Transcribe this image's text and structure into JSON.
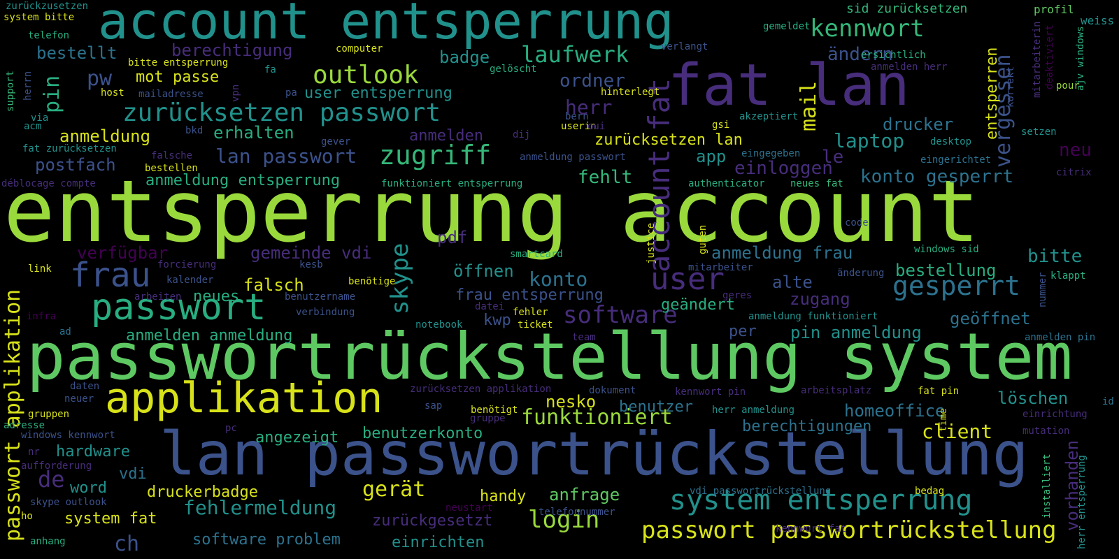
{
  "palette": {
    "lime": "#9ad93c",
    "green": "#5ec962",
    "teal": "#21918c",
    "seagreen": "#28ae80",
    "blue": "#3b528b",
    "indigo": "#472d7b",
    "purple": "#440154",
    "yellow": "#d8e219",
    "steel": "#2c728e",
    "mint": "#35b779"
  },
  "words": [
    "entsperrung account",
    "passwortrückstellung system",
    "lan passwortrückstellung",
    "account entsperrung",
    "fat lan",
    "applikation",
    "passwort",
    "zurücksetzen passwort",
    "outlook",
    "zugriff",
    "laufwerk",
    "kennwort",
    "frau",
    "user",
    "account fat",
    "system entsperrung",
    "passwort passwortrückstellung",
    "gesperrt",
    "software",
    "skype",
    "funktioniert",
    "login",
    "gerät",
    "fehlermeldung",
    "passwort applikation",
    "mail",
    "vergessen",
    "lan passwort",
    "postfach",
    "pin",
    "pw",
    "herr",
    "ordner",
    "ändern",
    "badge",
    "berechtigung",
    "bestellt",
    "mot passe",
    "user entsperrung",
    "anmeldung",
    "erhalten",
    "anmelden",
    "zurücksetzen lan",
    "laptop",
    "drucker",
    "einloggen",
    "konto gesperrt",
    "app",
    "le",
    "neu",
    "fehlt",
    "anmeldung entsperrung",
    "pdf",
    "verfügbar",
    "gemeinde vdi",
    "anmeldung frau",
    "bitte",
    "konto",
    "öffnen",
    "bestellung",
    "alte",
    "falsch",
    "neues",
    "frau entsperrung",
    "zugang",
    "geändert",
    "geöffnet",
    "kwp",
    "anmelden anmeldung",
    "per",
    "pin anmeldung",
    "benutzer",
    "homeoffice",
    "löschen",
    "nesko",
    "angezeigt",
    "benutzerkonto",
    "berechtigungen",
    "client",
    "hardware",
    "vdi",
    "de",
    "word",
    "druckerbadge",
    "anfrage",
    "handy",
    "system fat",
    "zurückgesetzt",
    "software problem",
    "einrichten",
    "ch",
    "vorhanden",
    "entsperren",
    "sid zurücksetzen",
    "profil",
    "weiss",
    "zurückzusetzen",
    "system bitte",
    "telefon",
    "computer",
    "gemeldet",
    "verlangt",
    "bitte entsperrung",
    "gelöscht",
    "fa",
    "ersichtlich",
    "anmelden herr",
    "host",
    "mailadresse",
    "vpn",
    "pa",
    "hinterlegt",
    "pour",
    "support",
    "herrn",
    "via",
    "acm",
    "bkd",
    "bern",
    "dij",
    "userin",
    "oui",
    "akzeptiert",
    "gsi",
    "korrekt",
    "setzen",
    "fat zurücksetzen",
    "gever",
    "falsche",
    "anmeldung passwort",
    "eingegeben",
    "eingerichtet",
    "desktop",
    "bestellen",
    "citrix",
    "déblocage compte",
    "funktioniert entsperrung",
    "authenticator",
    "neues fat",
    "code",
    "justice",
    "guten",
    "smartcard",
    "windows sid",
    "link",
    "forcierung",
    "kesb",
    "mitarbeiter",
    "änderung",
    "klappt",
    "infra",
    "arbeiten",
    "kalender",
    "benötige",
    "benutzername",
    "verbindung",
    "geres",
    "datei",
    "fehler",
    "anmeldung funktioniert",
    "nummer",
    "ad",
    "notebook",
    "ticket",
    "team",
    "anmelden pin",
    "daten",
    "zurücksetzen applikation",
    "dokument",
    "kennwort pin",
    "arbeitsplatz",
    "fat pin",
    "id",
    "neuer",
    "sap",
    "benötigt",
    "gruppen",
    "gruppe",
    "herr anmeldung",
    "einrichtung",
    "adresse",
    "windows kennwort",
    "pc",
    "time",
    "mutation",
    "nr",
    "aufforderung",
    "skype outlook",
    "ho",
    "neustart",
    "vdi passwortrückstellung",
    "bedag",
    "telefonnummer",
    "anhang",
    "kennwort fat",
    "installiert",
    "herr entsperrung",
    "mitarbeiterin",
    "deaktiviert",
    "ajv windows"
  ]
}
